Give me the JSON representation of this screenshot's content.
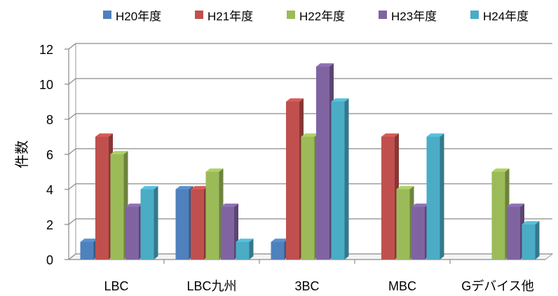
{
  "chart_data": {
    "type": "bar",
    "categories": [
      "LBC",
      "LBC九州",
      "3BC",
      "MBC",
      "Gデバイス他"
    ],
    "series": [
      {
        "name": "H20年度",
        "values": [
          1,
          4,
          1,
          0,
          0
        ],
        "color": "#4F81BD"
      },
      {
        "name": "H21年度",
        "values": [
          7,
          4,
          9,
          7,
          0
        ],
        "color": "#C0504D"
      },
      {
        "name": "H22年度",
        "values": [
          6,
          5,
          7,
          4,
          5
        ],
        "color": "#9BBB59"
      },
      {
        "name": "H23年度",
        "values": [
          3,
          3,
          11,
          3,
          3
        ],
        "color": "#8064A2"
      },
      {
        "name": "H24年度",
        "values": [
          4,
          1,
          9,
          7,
          2
        ],
        "color": "#4BACC6"
      }
    ],
    "title": "",
    "xlabel": "",
    "ylabel": "件数",
    "ylim": [
      0,
      12
    ],
    "yticks": [
      "0",
      "2",
      "4",
      "6",
      "8",
      "10",
      "12"
    ],
    "grid": true,
    "legend_position": "top",
    "style": "3d-clustered-column"
  }
}
